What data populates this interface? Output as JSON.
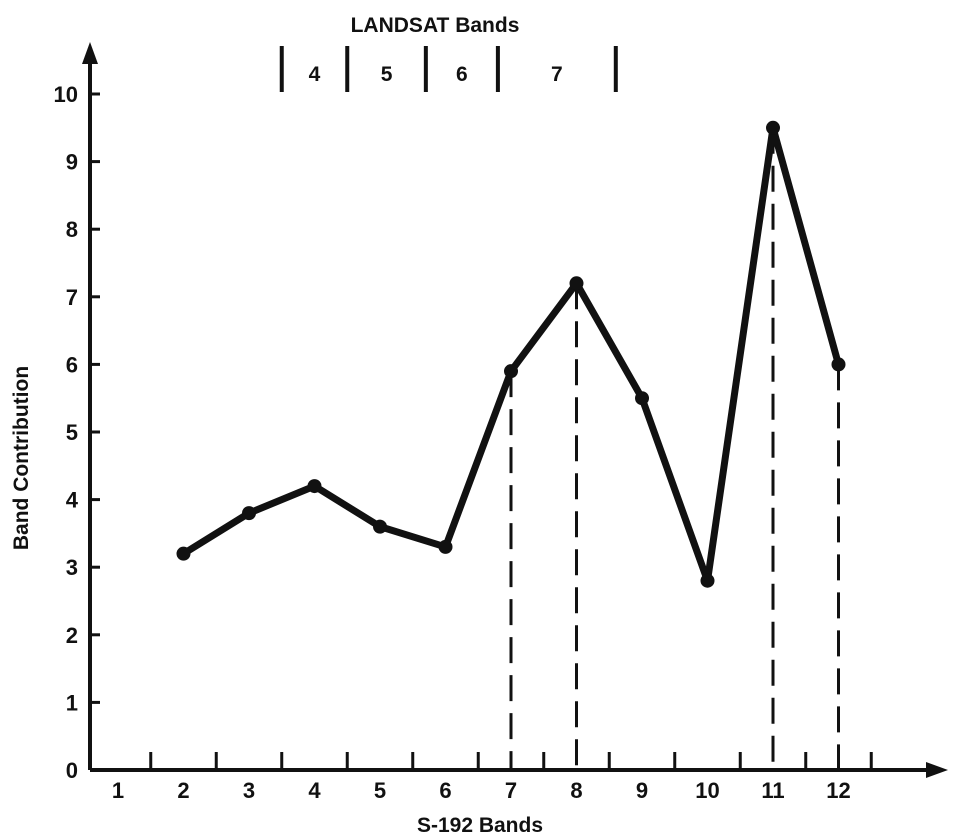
{
  "chart_data": {
    "type": "line",
    "title": "",
    "xlabel": "S-192 Bands",
    "ylabel": "Band Contribution",
    "x_tick_labels": [
      "1",
      "2",
      "3",
      "4",
      "5",
      "6",
      "7",
      "8",
      "9",
      "10",
      "11",
      "12"
    ],
    "y_tick_labels": [
      "0",
      "1",
      "2",
      "3",
      "4",
      "5",
      "6",
      "7",
      "8",
      "9",
      "10"
    ],
    "xlim": [
      0.5,
      13.5
    ],
    "ylim": [
      0,
      10.8
    ],
    "grid": false,
    "series": [
      {
        "x": [
          2,
          3,
          4,
          5,
          6,
          7,
          8,
          9,
          10,
          11,
          12
        ],
        "values": [
          3.2,
          3.8,
          4.2,
          3.6,
          3.3,
          5.9,
          7.2,
          5.5,
          2.8,
          9.5,
          6.0
        ]
      }
    ],
    "dashed_drop_lines_at_x": [
      7,
      8,
      11,
      12
    ],
    "landsat_bands": {
      "title": "LANDSAT Bands",
      "bands": [
        {
          "label": "4",
          "from": 3.5,
          "to": 4.5
        },
        {
          "label": "5",
          "from": 4.5,
          "to": 5.7
        },
        {
          "label": "6",
          "from": 5.7,
          "to": 6.8
        },
        {
          "label": "7",
          "from": 6.8,
          "to": 8.6
        }
      ]
    },
    "colors": {
      "line": "#111111",
      "background": "#ffffff"
    }
  }
}
